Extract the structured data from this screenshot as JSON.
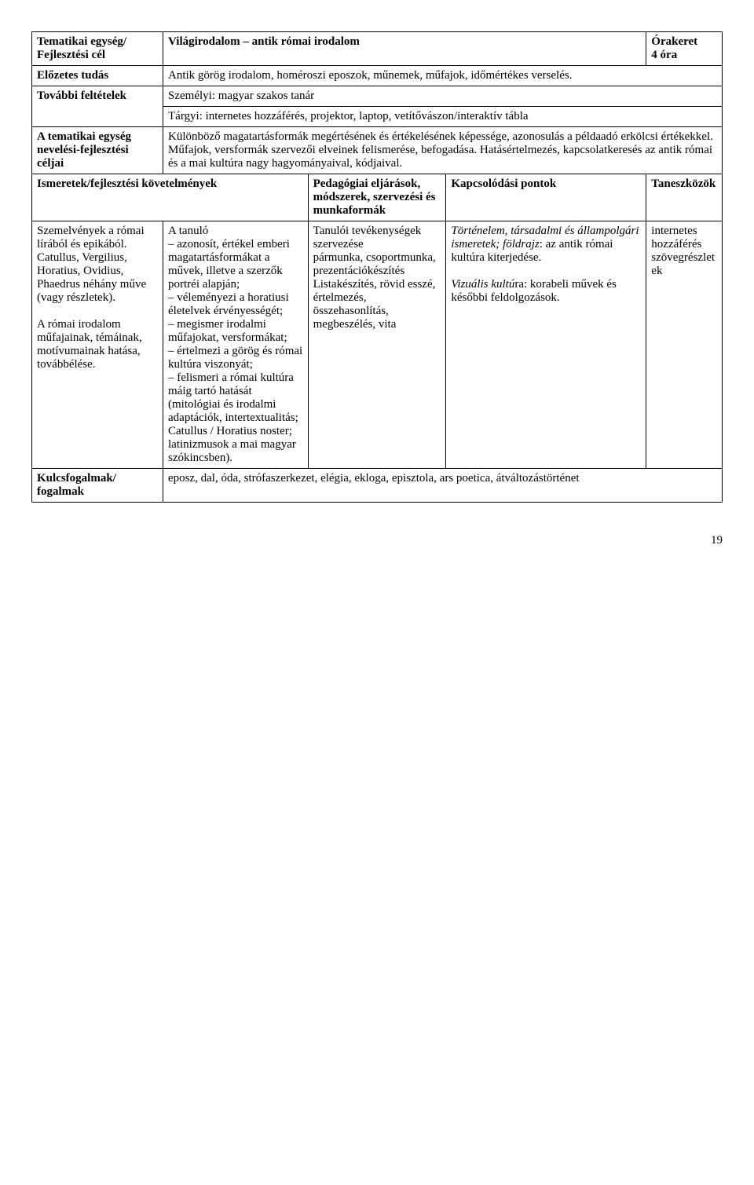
{
  "headerRow": {
    "c1": "Tematikai egység/ Fejlesztési cél",
    "c2": "Világirodalom – antik római irodalom",
    "c3a": "Órakeret",
    "c3b": "4 óra"
  },
  "row2": {
    "c1": "Előzetes tudás",
    "c2": "Antik görög irodalom, homéroszi eposzok, műnemek, műfajok, időmértékes verselés."
  },
  "row3": {
    "c1": "További feltételek",
    "c2a": "Személyi: magyar szakos tanár",
    "c2b": "Tárgyi: internetes hozzáférés, projektor, laptop, vetítővászon/interaktív tábla"
  },
  "row4": {
    "c1": "A tematikai egység nevelési-fejlesztési céljai",
    "c2": "Különböző magatartásformák megértésének és értékelésének képessége, azonosulás a példaadó erkölcsi értékekkel.\nMűfajok, versformák szervezői elveinek felismerése, befogadása. Hatásértelmezés, kapcsolatkeresés az antik római és a mai kultúra nagy hagyományaival, kódjaival."
  },
  "row5": {
    "c1": "Ismeretek/fejlesztési követelmények",
    "c3": "Pedagógiai eljárások, módszerek, szervezési és munkaformák",
    "c4": "Kapcsolódási pontok",
    "c5": "Taneszközök"
  },
  "row6": {
    "c1a": "Szemelvények a római lírából és epikából.",
    "c1b": "Catullus, Vergilius, Horatius, Ovidius, Phaedrus néhány műve (vagy részletek).",
    "c1c": "A római irodalom műfajainak, témáinak, motívumainak hatása, továbbélése.",
    "c2a": "A tanuló",
    "c2b": "– azonosít, értékel emberi magatartásformákat a művek, illetve a szerzők portréi alapján;",
    "c2c": "– véleményezi a horatiusi életelvek érvényességét;",
    "c2d": "– megismer irodalmi műfajokat, versformákat;",
    "c2e": "– értelmezi a görög és római kultúra viszonyát;",
    "c2f": "– felismeri a római kultúra máig tartó hatását (mitológiai és irodalmi adaptációk, intertextualitás; Catullus / Horatius noster; latinizmusok a mai magyar szókincsben).",
    "c3a": "Tanulói tevékenységek szervezése",
    "c3b": "pármunka, csoportmunka, prezentációkészítés",
    "c3c": "Listakészítés, rövid esszé, értelmezés, összehasonlítás, megbeszélés, vita",
    "c4a": "Történelem, társadalmi és állampolgári ismeretek; földrajz",
    "c4b": ": az antik római kultúra kiterjedése.",
    "c4c": "Vizuális kultú",
    "c4cr": "ra: korabeli művek és későbbi feldolgozások.",
    "c5": "internetes hozzáférés szövegrészletek"
  },
  "row7": {
    "c1": "Kulcsfogalmak/ fogalmak",
    "c2": "eposz, dal, óda, strófaszerkezet, elégia, ekloga, episztola, ars poetica, átváltozástörténet"
  },
  "pageNum": "19"
}
